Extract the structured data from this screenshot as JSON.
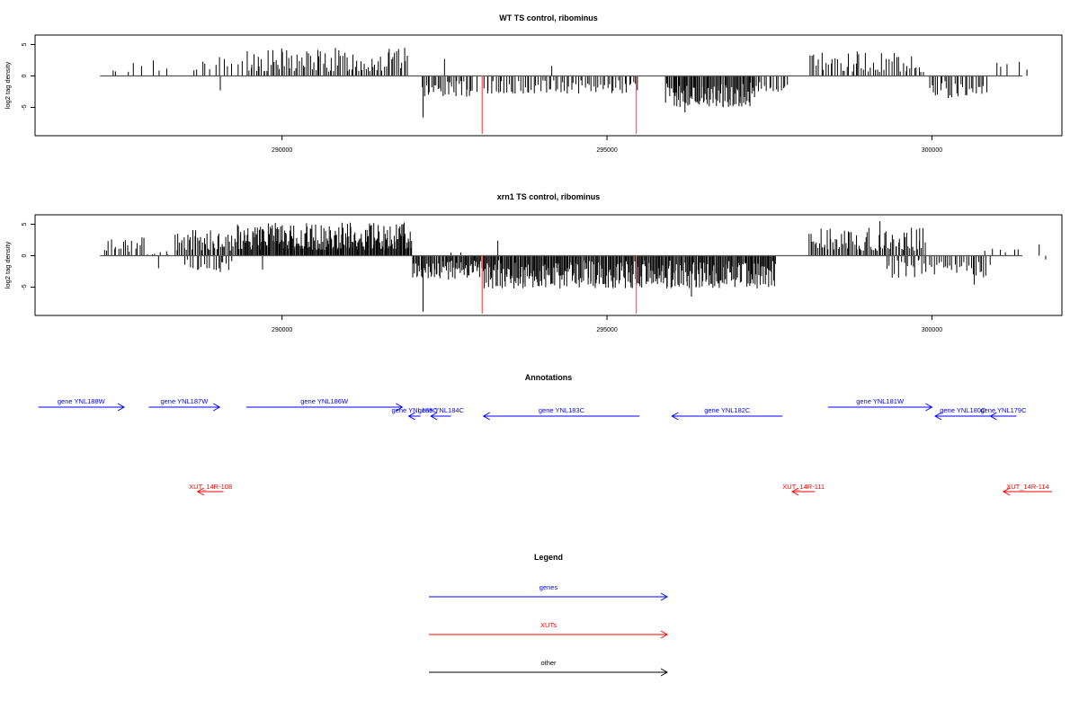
{
  "colors": {
    "gene": "#0000ff",
    "xut": "#ff0000",
    "other": "#000000",
    "marker": "#ff6666",
    "bar": "#000000"
  },
  "chart_data": [
    {
      "type": "bar",
      "title": "WT TS control, ribominus",
      "ylabel": "log2 tag density",
      "xlim": [
        286200,
        302000
      ],
      "ylim": [
        -9.5,
        6.5
      ],
      "yticks": [
        "5",
        "0",
        "-5"
      ],
      "yticks_values": [
        5,
        0,
        -5
      ],
      "xticks": [
        "290000",
        "295000",
        "300000"
      ],
      "xticks_values": [
        290000,
        295000,
        300000
      ],
      "baseline": [
        287200,
        302200
      ],
      "markers": [
        {
          "x": 293080,
          "y": -9.2
        },
        {
          "x": 295450,
          "y": -9.2
        }
      ],
      "density_segments": [
        {
          "start": 287300,
          "end": 288300,
          "count": 8,
          "min": 0.4,
          "max": 2.6,
          "seed": 11
        },
        {
          "start": 288600,
          "end": 289400,
          "count": 12,
          "min": 0.8,
          "max": 3.0,
          "seed": 12
        },
        {
          "start": 289450,
          "end": 291950,
          "count": 90,
          "min": 0.6,
          "max": 4.5,
          "seed": 13
        },
        {
          "start": 292150,
          "end": 292950,
          "count": 30,
          "min": -3.3,
          "max": -0.8,
          "seed": 14
        },
        {
          "start": 293100,
          "end": 295500,
          "count": 70,
          "min": -2.8,
          "max": -0.7,
          "seed": 15
        },
        {
          "start": 295900,
          "end": 297300,
          "count": 90,
          "min": -5.0,
          "max": -1.0,
          "seed": 16
        },
        {
          "start": 297300,
          "end": 297800,
          "count": 14,
          "min": -2.5,
          "max": -0.8,
          "seed": 17
        },
        {
          "start": 298100,
          "end": 299900,
          "count": 50,
          "min": 0.6,
          "max": 3.8,
          "seed": 18
        },
        {
          "start": 299950,
          "end": 300850,
          "count": 28,
          "min": -3.5,
          "max": -0.8,
          "seed": 19
        },
        {
          "start": 301000,
          "end": 301600,
          "count": 4,
          "min": 1.0,
          "max": 2.3,
          "seed": 20
        }
      ],
      "spikes": [
        {
          "x": 289050,
          "y": -2.3
        },
        {
          "x": 292170,
          "y": -6.6
        },
        {
          "x": 292500,
          "y": 2.7
        },
        {
          "x": 293000,
          "y": -2.5
        },
        {
          "x": 294150,
          "y": 1.6
        },
        {
          "x": 296200,
          "y": -5.8
        },
        {
          "x": 300250,
          "y": -3.5
        },
        {
          "x": 301000,
          "y": 2.1
        },
        {
          "x": 298850,
          "y": 3.9
        }
      ]
    },
    {
      "type": "bar",
      "title": "xrn1 TS control, ribominus",
      "ylabel": "log2 tag density",
      "xlim": [
        286200,
        302000
      ],
      "ylim": [
        -9.5,
        6.5
      ],
      "yticks": [
        "5",
        "0",
        "-5"
      ],
      "yticks_values": [
        5,
        0,
        -5
      ],
      "xticks": [
        "290000",
        "295000",
        "300000"
      ],
      "xticks_values": [
        290000,
        295000,
        300000
      ],
      "baseline": [
        287200,
        302200
      ],
      "markers": [
        {
          "x": 293080,
          "y": -9.2
        },
        {
          "x": 295450,
          "y": -9.2
        }
      ],
      "density_segments": [
        {
          "start": 287250,
          "end": 287900,
          "count": 18,
          "min": 0.6,
          "max": 3.0,
          "seed": 31
        },
        {
          "start": 287900,
          "end": 288300,
          "count": 6,
          "min": 0.2,
          "max": 0.8,
          "seed": 32
        },
        {
          "start": 288350,
          "end": 289300,
          "count": 45,
          "min": 0.8,
          "max": 4.2,
          "seed": 33
        },
        {
          "start": 288500,
          "end": 289250,
          "count": 18,
          "min": -2.3,
          "max": -0.6,
          "seed": 34
        },
        {
          "start": 289300,
          "end": 292000,
          "count": 220,
          "min": 0.9,
          "max": 5.3,
          "seed": 35
        },
        {
          "start": 292000,
          "end": 292950,
          "count": 60,
          "min": -3.8,
          "max": -0.8,
          "seed": 36
        },
        {
          "start": 292950,
          "end": 297600,
          "count": 330,
          "min": -5.2,
          "max": -0.7,
          "seed": 37
        },
        {
          "start": 298100,
          "end": 299900,
          "count": 80,
          "min": 0.8,
          "max": 4.5,
          "seed": 38
        },
        {
          "start": 299300,
          "end": 300900,
          "count": 45,
          "min": -3.5,
          "max": -0.6,
          "seed": 39
        },
        {
          "start": 300800,
          "end": 301400,
          "count": 6,
          "min": 0.5,
          "max": 1.5,
          "seed": 40
        }
      ],
      "spikes": [
        {
          "x": 288100,
          "y": -2.0
        },
        {
          "x": 289050,
          "y": -2.6
        },
        {
          "x": 289700,
          "y": -2.2
        },
        {
          "x": 292170,
          "y": -8.9
        },
        {
          "x": 292600,
          "y": 0.5
        },
        {
          "x": 292750,
          "y": 0.5
        },
        {
          "x": 293320,
          "y": 2.4
        },
        {
          "x": 296300,
          "y": -6.5
        },
        {
          "x": 299200,
          "y": 5.5
        },
        {
          "x": 300650,
          "y": -4.6
        },
        {
          "x": 301650,
          "y": 1.8
        },
        {
          "x": 301750,
          "y": -0.6
        }
      ]
    }
  ],
  "annotations": {
    "title": "Annotations",
    "genes": [
      {
        "label": "gene YNL188W",
        "start": 286250,
        "end": 287570,
        "row": 0
      },
      {
        "label": "gene YNL187W",
        "start": 287950,
        "end": 289040,
        "row": 0
      },
      {
        "label": "gene YNL186W",
        "start": 289450,
        "end": 291850,
        "row": 0
      },
      {
        "label": "gene YNL185C",
        "start": 291950,
        "end": 292130,
        "row": 1
      },
      {
        "label": "gene YNL184C",
        "start": 292290,
        "end": 292600,
        "row": 1
      },
      {
        "label": "gene YNL183C",
        "start": 293100,
        "end": 295500,
        "row": 1
      },
      {
        "label": "gene YNL182C",
        "start": 296000,
        "end": 297700,
        "row": 1
      },
      {
        "label": "gene YNL181W",
        "start": 298400,
        "end": 300000,
        "row": 0
      },
      {
        "label": "gene YNL180C",
        "start": 300050,
        "end": 300900,
        "row": 1
      },
      {
        "label": "gene YNL179C",
        "start": 300900,
        "end": 301300,
        "row": 1
      }
    ],
    "xuts": [
      {
        "label": "XUT_14R-108",
        "start": 288700,
        "end": 289100
      },
      {
        "label": "XUT_14R-111",
        "start": 297850,
        "end": 298200
      },
      {
        "label": "XUT_14R-114",
        "start": 301100,
        "end": 302150
      }
    ]
  },
  "legend": {
    "title": "Legend",
    "items": [
      {
        "label": "genes",
        "color": "#0000ff"
      },
      {
        "label": "XUTs",
        "color": "#ff0000"
      },
      {
        "label": "other",
        "color": "#000000"
      }
    ]
  }
}
